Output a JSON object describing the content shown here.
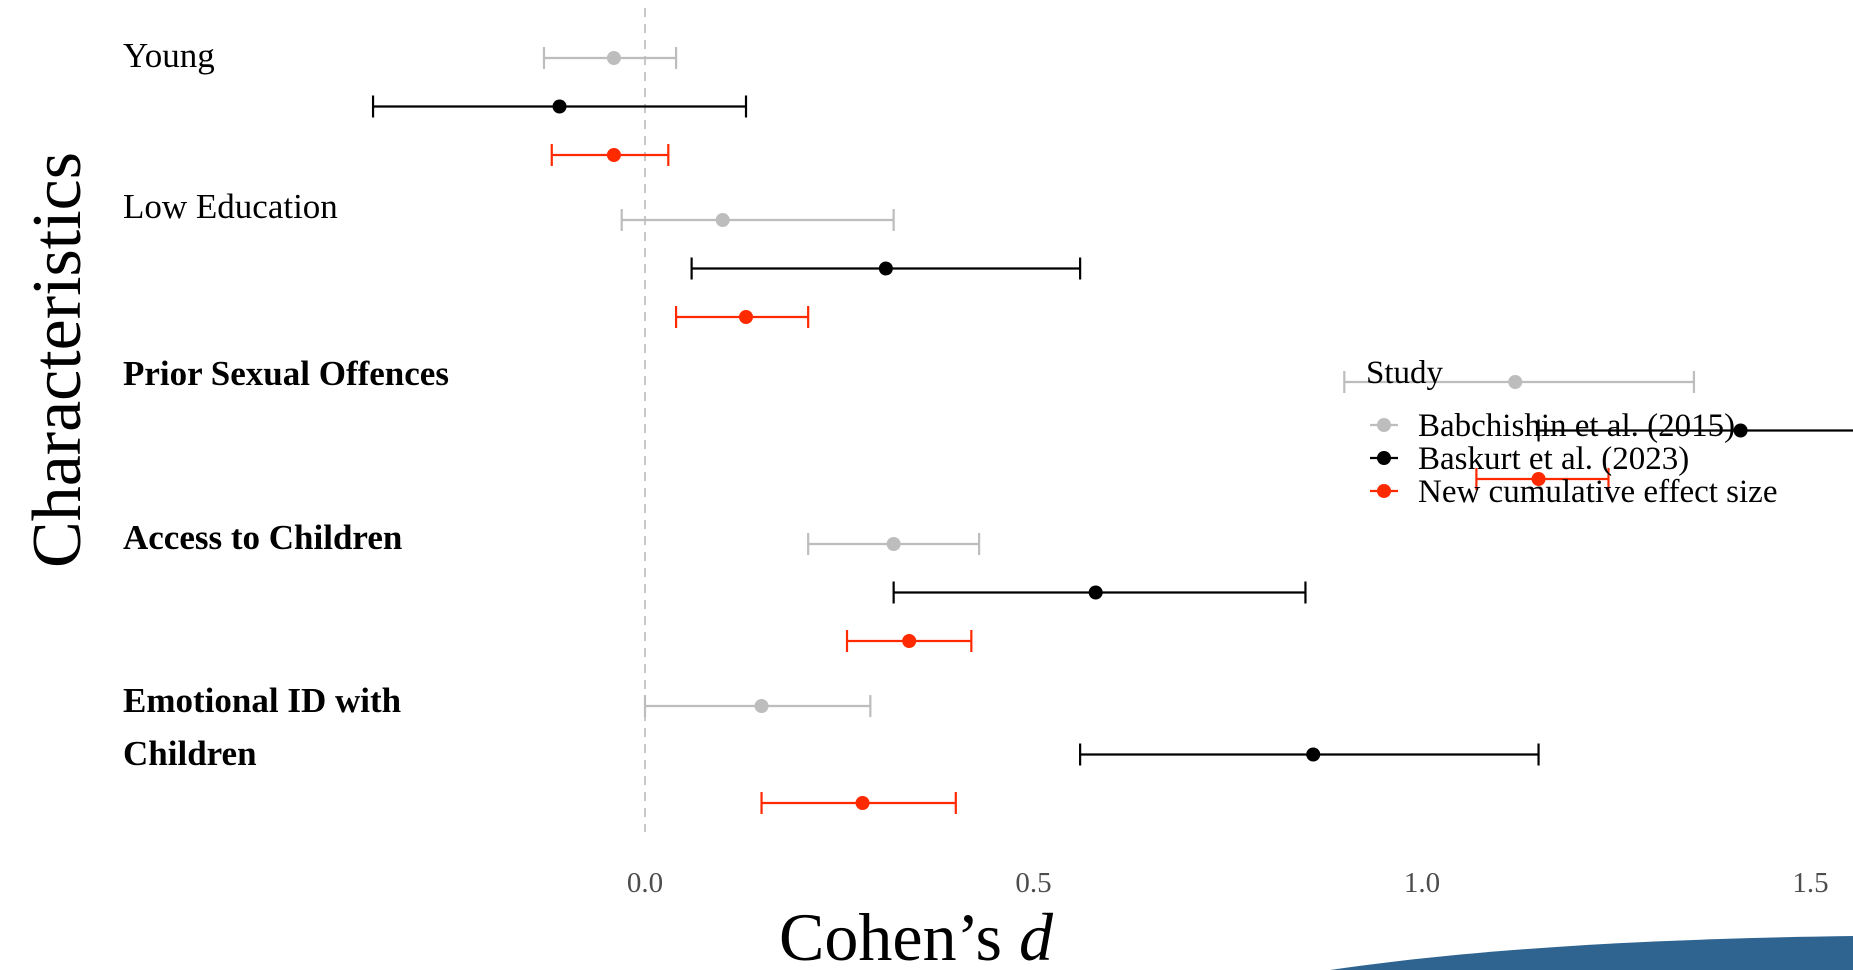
{
  "chart_data": {
    "type": "scatter",
    "subtype": "forest-plot",
    "title": "",
    "xlabel_main": "Cohen’s ",
    "xlabel_italic": "d",
    "ylabel": "Characteristics",
    "xlim": [
      -0.35,
      1.73
    ],
    "x_ticks": [
      "0.0",
      "0.5",
      "1.0",
      "1.5"
    ],
    "reference_line_x": 0,
    "grid": false,
    "legend": {
      "title": "Study",
      "position": "right",
      "entries": [
        "Babchishin et al. (2015)",
        "Baskurt et al. (2023)",
        "New cumulative effect size"
      ]
    },
    "categories": [
      {
        "label_lines": [
          "Young"
        ],
        "bold": false
      },
      {
        "label_lines": [
          "Low Education"
        ],
        "bold": false
      },
      {
        "label_lines": [
          "Prior Sexual Offences"
        ],
        "bold": true
      },
      {
        "label_lines": [
          "Access to Children"
        ],
        "bold": true
      },
      {
        "label_lines": [
          "Emotional ID with",
          "Children"
        ],
        "bold": true
      }
    ],
    "series": [
      {
        "name": "Babchishin et al. (2015)",
        "color": "#bdbdbd",
        "points": [
          {
            "d": -0.04,
            "lo": -0.13,
            "hi": 0.04
          },
          {
            "d": 0.1,
            "lo": -0.03,
            "hi": 0.32
          },
          {
            "d": 1.12,
            "lo": 0.9,
            "hi": 1.35
          },
          {
            "d": 0.32,
            "lo": 0.21,
            "hi": 0.43
          },
          {
            "d": 0.15,
            "lo": 0.0,
            "hi": 0.29
          }
        ]
      },
      {
        "name": "Baskurt et al. (2023)",
        "color": "#000000",
        "points": [
          {
            "d": -0.11,
            "lo": -0.35,
            "hi": 0.13
          },
          {
            "d": 0.31,
            "lo": 0.06,
            "hi": 0.56
          },
          {
            "d": 1.41,
            "lo": 1.15,
            "hi": 1.68
          },
          {
            "d": 0.58,
            "lo": 0.32,
            "hi": 0.85
          },
          {
            "d": 0.86,
            "lo": 0.56,
            "hi": 1.15
          }
        ]
      },
      {
        "name": "New cumulative effect size",
        "color": "#ff2a00",
        "points": [
          {
            "d": -0.04,
            "lo": -0.12,
            "hi": 0.03
          },
          {
            "d": 0.13,
            "lo": 0.04,
            "hi": 0.21
          },
          {
            "d": 1.15,
            "lo": 1.07,
            "hi": 1.24
          },
          {
            "d": 0.34,
            "lo": 0.26,
            "hi": 0.42
          },
          {
            "d": 0.28,
            "lo": 0.15,
            "hi": 0.4
          }
        ]
      }
    ]
  },
  "colors": {
    "reference_line": "#c8c8c8",
    "tick_text": "#4d4d4d",
    "footer_band": "#2f6490"
  }
}
